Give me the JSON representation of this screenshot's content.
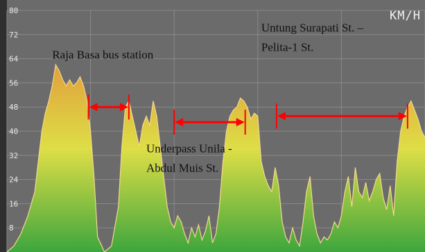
{
  "chart_data": {
    "type": "area",
    "ylabel": "KM/H",
    "yticks": [
      8,
      16,
      24,
      32,
      40,
      48,
      56,
      64,
      72,
      80
    ],
    "ylim": [
      0,
      80
    ],
    "xlim": [
      0,
      600
    ],
    "grid": true,
    "colors": {
      "background": "#6b6b6b",
      "grid": "#8a8a8a",
      "fill_top": "#e0a03c",
      "fill_mid": "#dede46",
      "fill_bottom": "#3ea63e",
      "line": "#f4d890",
      "marker": "#ff0000"
    },
    "x": [
      0,
      10,
      20,
      30,
      40,
      45,
      50,
      55,
      60,
      65,
      70,
      75,
      80,
      85,
      90,
      95,
      100,
      105,
      110,
      115,
      120,
      125,
      130,
      140,
      150,
      160,
      165,
      170,
      175,
      180,
      185,
      190,
      195,
      200,
      205,
      210,
      215,
      220,
      225,
      230,
      235,
      240,
      245,
      250,
      255,
      260,
      265,
      270,
      275,
      280,
      285,
      290,
      295,
      300,
      305,
      310,
      315,
      320,
      325,
      330,
      335,
      340,
      345,
      350,
      355,
      360,
      365,
      370,
      375,
      380,
      385,
      390,
      395,
      400,
      405,
      410,
      415,
      420,
      425,
      430,
      435,
      440,
      445,
      450,
      455,
      460,
      465,
      470,
      475,
      480,
      485,
      490,
      495,
      500,
      505,
      510,
      515,
      520,
      525,
      530,
      535,
      540,
      545,
      550,
      555,
      560,
      565,
      570,
      575,
      580,
      585,
      590,
      595,
      600
    ],
    "values": [
      0,
      2,
      6,
      12,
      20,
      30,
      40,
      46,
      50,
      55,
      62,
      60,
      57,
      55,
      57,
      55,
      56,
      58,
      55,
      50,
      40,
      25,
      5,
      0,
      2,
      15,
      35,
      48,
      50,
      45,
      40,
      35,
      42,
      45,
      42,
      50,
      45,
      35,
      25,
      15,
      10,
      8,
      12,
      10,
      6,
      3,
      8,
      5,
      9,
      4,
      7,
      12,
      3,
      6,
      15,
      30,
      40,
      45,
      47,
      48,
      51,
      50,
      48,
      44,
      46,
      45,
      30,
      25,
      22,
      20,
      28,
      22,
      10,
      5,
      3,
      8,
      4,
      2,
      10,
      20,
      25,
      12,
      6,
      3,
      5,
      4,
      6,
      10,
      8,
      12,
      20,
      25,
      15,
      28,
      20,
      18,
      23,
      17,
      20,
      24,
      26,
      18,
      14,
      22,
      12,
      30,
      40,
      45,
      48,
      50,
      47,
      44,
      40,
      38
    ],
    "annotations": [
      {
        "text": "Raja Basa bus station",
        "x": 65,
        "y": 64
      },
      {
        "text": "Untung Surapati St. –",
        "x": 365,
        "y": 73
      },
      {
        "text": "Pelita-1 St.",
        "x": 365,
        "y": 66.5
      },
      {
        "text": "Underpass Unila -",
        "x": 200,
        "y": 33
      },
      {
        "text": "Abdul Muis St.",
        "x": 200,
        "y": 26.5
      }
    ],
    "ranges": [
      {
        "x1": 117,
        "x2": 175,
        "y": 48
      },
      {
        "x1": 240,
        "x2": 342,
        "y": 43
      },
      {
        "x1": 387,
        "x2": 575,
        "y": 45
      }
    ]
  }
}
